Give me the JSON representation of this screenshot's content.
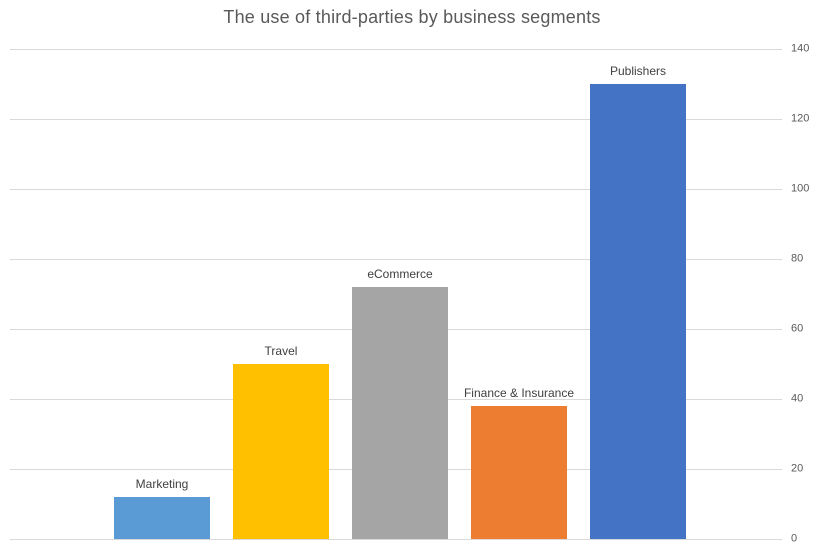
{
  "chart_data": {
    "type": "bar",
    "title": "The use of third-parties by business segments",
    "categories": [
      "Marketing",
      "Travel",
      "eCommerce",
      "Finance & Insurance",
      "Publishers"
    ],
    "values": [
      12,
      50,
      72,
      38,
      130
    ],
    "bar_colors": [
      "#5B9BD5",
      "#FFC000",
      "#A5A5A5",
      "#ED7D31",
      "#4472C4"
    ],
    "yticks": [
      0,
      20,
      40,
      60,
      80,
      100,
      120,
      140
    ],
    "ylim": [
      0,
      140
    ],
    "xlabel": "",
    "ylabel": "",
    "axis_side": "right",
    "grid": true,
    "legend": "none",
    "label_position": "above-bar",
    "colors": {
      "gridline": "#D9D9D9",
      "tick_text": "#595959",
      "title_text": "#595959",
      "category_label_text": "#404040",
      "background": "#FFFFFF"
    }
  }
}
